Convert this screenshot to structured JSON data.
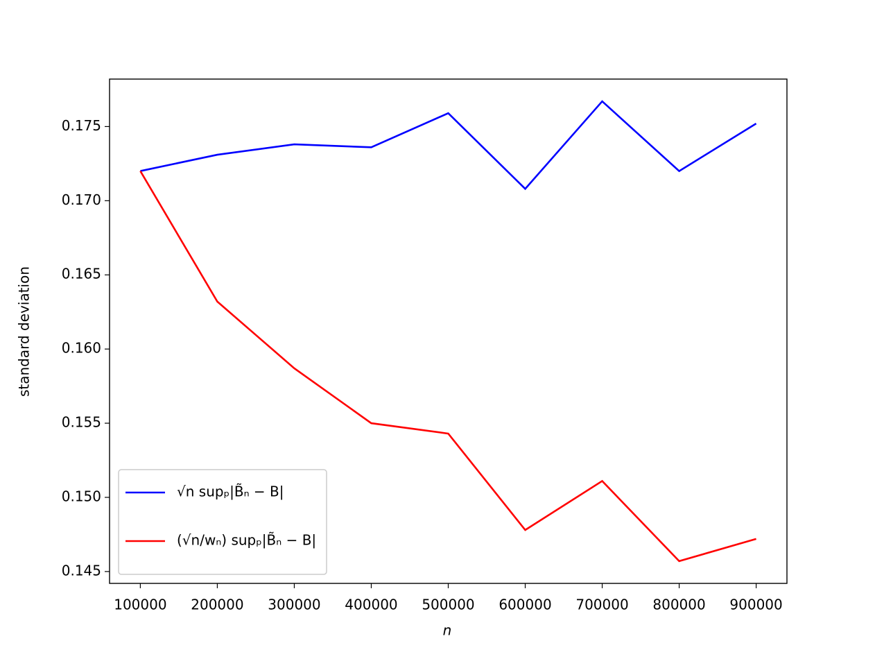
{
  "chart_data": {
    "type": "line",
    "xlabel": "n",
    "ylabel": "standard deviation",
    "x": [
      100000,
      200000,
      300000,
      400000,
      500000,
      600000,
      700000,
      800000,
      900000
    ],
    "series": [
      {
        "name": "√n supₚ|B̃ₙ − B|",
        "color": "#0000ff",
        "values": [
          0.172,
          0.1731,
          0.1738,
          0.1736,
          0.1759,
          0.1708,
          0.1767,
          0.172,
          0.1752
        ]
      },
      {
        "name": "(√n/wₙ) supₚ|B̃ₙ − B|",
        "color": "#ff0000",
        "values": [
          0.172,
          0.1632,
          0.1587,
          0.155,
          0.1543,
          0.1478,
          0.1511,
          0.1457,
          0.1472
        ]
      }
    ],
    "xlim": [
      60000,
      940000
    ],
    "ylim": [
      0.1442,
      0.1782
    ],
    "xticks": [
      100000,
      200000,
      300000,
      400000,
      500000,
      600000,
      700000,
      800000,
      900000
    ],
    "yticks": [
      0.145,
      {
        "value": 0.15,
        "label": "0.150"
      },
      0.155,
      {
        "value": 0.16,
        "label": "0.160"
      },
      0.165,
      {
        "value": 0.17,
        "label": "0.170"
      },
      0.175
    ],
    "legend": "lower left"
  }
}
